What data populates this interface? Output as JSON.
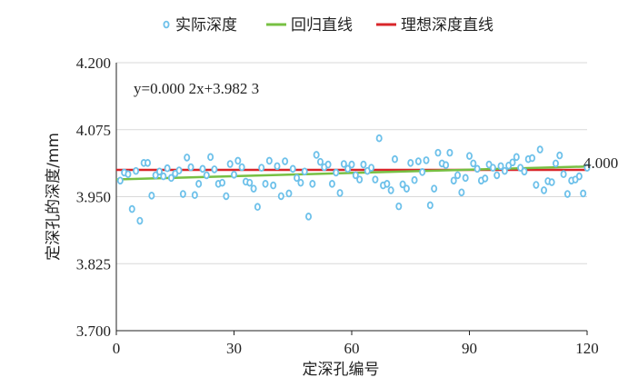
{
  "chart_data": {
    "type": "scatter",
    "xlabel": "定深孔编号",
    "ylabel": "定深孔的深度/mm",
    "xlim": [
      0,
      120
    ],
    "ylim": [
      3.7,
      4.2
    ],
    "xticks": [
      "0",
      "30",
      "60",
      "90",
      "120"
    ],
    "yticks": [
      "3.700",
      "3.825",
      "3.950",
      "4.075",
      "4.200"
    ],
    "grid": "horizontal",
    "legend_position": "top",
    "equation": "y=0.000 2x+3.982 3",
    "reference_label": "4.000",
    "series": [
      {
        "name": "实际深度",
        "color": "#6ec1ea",
        "x": [
          1,
          2,
          3,
          4,
          5,
          6,
          7,
          8,
          9,
          10,
          11,
          12,
          13,
          14,
          15,
          16,
          17,
          18,
          19,
          20,
          21,
          22,
          23,
          24,
          25,
          26,
          27,
          28,
          29,
          30,
          31,
          32,
          33,
          34,
          35,
          36,
          37,
          38,
          39,
          40,
          41,
          42,
          43,
          44,
          45,
          46,
          47,
          48,
          49,
          50,
          51,
          52,
          53,
          54,
          55,
          56,
          57,
          58,
          59,
          60,
          61,
          62,
          63,
          64,
          65,
          66,
          67,
          68,
          69,
          70,
          71,
          72,
          73,
          74,
          75,
          76,
          77,
          78,
          79,
          80,
          81,
          82,
          83,
          84,
          85,
          86,
          87,
          88,
          89,
          90,
          91,
          92,
          93,
          94,
          95,
          96,
          97,
          98,
          99,
          100,
          101,
          102,
          103,
          104,
          105,
          106,
          107,
          108,
          109,
          110,
          111,
          112,
          113,
          114,
          115,
          116,
          117,
          118,
          119,
          120
        ],
        "y": [
          3.98,
          3.995,
          3.992,
          3.927,
          3.998,
          3.905,
          4.013,
          4.013,
          3.952,
          3.99,
          3.997,
          3.988,
          4.003,
          3.985,
          3.993,
          3.999,
          3.955,
          4.023,
          4.005,
          3.953,
          3.974,
          4.002,
          3.99,
          4.024,
          4.001,
          3.974,
          3.976,
          3.951,
          4.011,
          3.991,
          4.017,
          4.005,
          3.978,
          3.976,
          3.965,
          3.931,
          4.004,
          3.974,
          4.017,
          3.971,
          4.007,
          3.951,
          4.016,
          3.956,
          4.002,
          3.985,
          3.976,
          3.997,
          3.913,
          3.974,
          4.028,
          4.015,
          4.005,
          4.01,
          3.974,
          3.995,
          3.957,
          4.011,
          4.002,
          4.01,
          3.99,
          3.982,
          4.01,
          3.998,
          4.004,
          3.982,
          4.059,
          3.971,
          3.974,
          3.962,
          4.02,
          3.932,
          3.973,
          3.965,
          4.013,
          3.981,
          4.016,
          3.996,
          4.018,
          3.934,
          3.965,
          4.032,
          4.012,
          4.009,
          4.032,
          3.98,
          3.99,
          3.958,
          3.985,
          4.026,
          4.012,
          4.002,
          3.98,
          3.984,
          4.01,
          4.004,
          3.99,
          4.007,
          3.998,
          4.008,
          4.014,
          4.024,
          4.004,
          3.997,
          4.02,
          4.022,
          3.972,
          4.038,
          3.962,
          3.979,
          3.977,
          4.012,
          4.027,
          3.992,
          3.955,
          3.98,
          3.982,
          3.988,
          3.956,
          4.004
        ]
      },
      {
        "name": "回归直线",
        "color": "#77c043",
        "x": [
          0,
          120
        ],
        "y": [
          3.9823,
          4.0063
        ]
      },
      {
        "name": "理想深度直线",
        "color": "#d9262a",
        "x": [
          0,
          120
        ],
        "y": [
          4.0,
          4.0
        ]
      }
    ]
  }
}
